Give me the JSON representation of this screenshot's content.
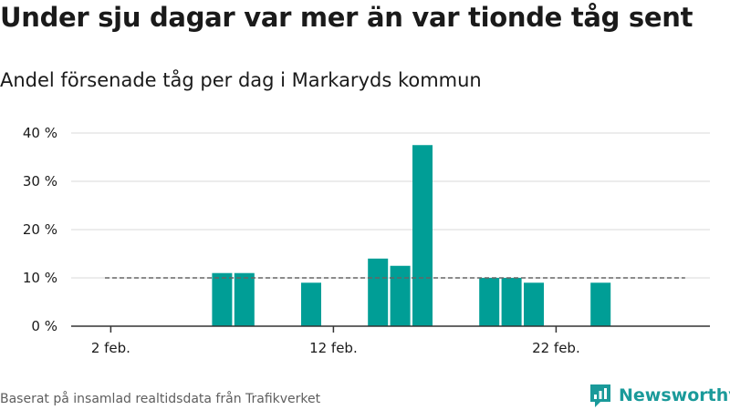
{
  "title": "Under sju dagar var mer än var tionde tåg sent",
  "subtitle": "Andel försenade tåg per dag i Markaryds kommun",
  "source": "Baserat på insamlad realtidsdata från Trafikverket",
  "brand": "Newsworthy",
  "colors": {
    "bar": "#009e96",
    "brand": "#1a9a9a",
    "reference_line": "#666666"
  },
  "chart_data": {
    "type": "bar",
    "x": [
      1,
      2,
      3,
      4,
      5,
      6,
      7,
      8,
      9,
      10,
      11,
      12,
      13,
      14,
      15,
      16,
      17,
      18,
      19,
      20,
      21,
      22,
      23,
      24,
      25,
      26,
      27,
      28
    ],
    "values": [
      0,
      0,
      0,
      0,
      0,
      0,
      11,
      11,
      0,
      0,
      9,
      0,
      0,
      14,
      12.5,
      37.5,
      0,
      0,
      10,
      10,
      9,
      0,
      0,
      9,
      0,
      0,
      0,
      0
    ],
    "xticks": [
      2,
      12,
      22
    ],
    "xtick_labels": [
      "2 feb.",
      "12 feb.",
      "22 feb."
    ],
    "yticks": [
      0,
      10,
      20,
      30,
      40
    ],
    "ytick_labels": [
      "0 %",
      "10 %",
      "20 %",
      "30 %",
      "40 %"
    ],
    "ylim": [
      0,
      40
    ],
    "reference_line": {
      "value": 10,
      "style": "dashed"
    },
    "grid": "horizontal"
  }
}
